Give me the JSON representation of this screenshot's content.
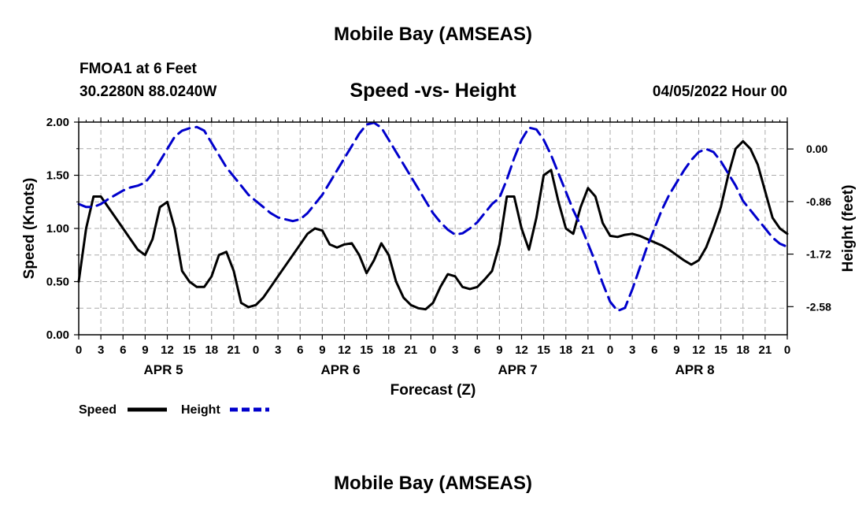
{
  "header": {
    "title": "Mobile Bay (AMSEAS)",
    "station": "FMOA1 at 6 Feet",
    "coords": "30.2280N  88.0240W",
    "subtitle": "Speed -vs- Height",
    "datetime": "04/05/2022 Hour 00",
    "bottom_title": "Mobile Bay (AMSEAS)"
  },
  "colors": {
    "speed": "#000000",
    "height": "#0000cc",
    "grid": "#aaaaaa"
  },
  "chart_data": {
    "type": "line",
    "xlabel": "Forecast (Z)",
    "x_ticks": [
      "0",
      "3",
      "6",
      "9",
      "12",
      "15",
      "18",
      "21",
      "0",
      "3",
      "6",
      "9",
      "12",
      "15",
      "18",
      "21",
      "0",
      "3",
      "6",
      "9",
      "12",
      "15",
      "18",
      "21",
      "0",
      "3",
      "6",
      "9",
      "12",
      "15",
      "18",
      "21",
      "0"
    ],
    "day_labels": [
      "APR 5",
      "APR 6",
      "APR 7",
      "APR 8"
    ],
    "x_range_hours": [
      0,
      96
    ],
    "y_left": {
      "label": "Speed (Knots)",
      "range": [
        0,
        2
      ],
      "ticks": [
        "0.00",
        "0.50",
        "1.00",
        "1.50",
        "2.00"
      ]
    },
    "y_right": {
      "label": "Height (feet)",
      "range": [
        -3.04,
        0.44
      ],
      "ticks": [
        "0.00",
        "-0.86",
        "-1.72",
        "-2.58"
      ]
    },
    "grid": true,
    "legend_position": "bottom-left",
    "series": [
      {
        "name": "Speed",
        "axis": "left",
        "style": "solid",
        "x": [
          0,
          1,
          2,
          3,
          4,
          5,
          6,
          7,
          8,
          9,
          10,
          11,
          12,
          13,
          14,
          15,
          16,
          17,
          18,
          19,
          20,
          21,
          22,
          23,
          24,
          25,
          26,
          27,
          28,
          29,
          30,
          31,
          32,
          33,
          34,
          35,
          36,
          37,
          38,
          39,
          40,
          41,
          42,
          43,
          44,
          45,
          46,
          47,
          48,
          49,
          50,
          51,
          52,
          53,
          54,
          55,
          56,
          57,
          58,
          59,
          60,
          61,
          62,
          63,
          64,
          65,
          66,
          67,
          68,
          69,
          70,
          71,
          72,
          73,
          74,
          75,
          76,
          77,
          78,
          79,
          80,
          81,
          82,
          83,
          84,
          85,
          86,
          87,
          88,
          89,
          90,
          91,
          92,
          93,
          94,
          95,
          96
        ],
        "values": [
          0.5,
          1.0,
          1.3,
          1.3,
          1.2,
          1.1,
          1.0,
          0.9,
          0.8,
          0.75,
          0.9,
          1.2,
          1.25,
          1.0,
          0.6,
          0.5,
          0.45,
          0.45,
          0.55,
          0.75,
          0.78,
          0.6,
          0.3,
          0.26,
          0.28,
          0.35,
          0.45,
          0.55,
          0.65,
          0.75,
          0.85,
          0.95,
          1.0,
          0.98,
          0.85,
          0.82,
          0.85,
          0.86,
          0.75,
          0.58,
          0.7,
          0.86,
          0.75,
          0.5,
          0.35,
          0.28,
          0.25,
          0.24,
          0.3,
          0.45,
          0.57,
          0.55,
          0.45,
          0.43,
          0.45,
          0.52,
          0.6,
          0.85,
          1.3,
          1.3,
          1.0,
          0.8,
          1.1,
          1.5,
          1.55,
          1.25,
          1.0,
          0.95,
          1.2,
          1.38,
          1.3,
          1.05,
          0.93,
          0.92,
          0.94,
          0.95,
          0.93,
          0.9,
          0.87,
          0.84,
          0.8,
          0.75,
          0.7,
          0.66,
          0.7,
          0.82,
          1.0,
          1.2,
          1.5,
          1.75,
          1.82,
          1.75,
          1.6,
          1.35,
          1.1,
          1.0,
          0.95
        ]
      },
      {
        "name": "Height",
        "axis": "right",
        "style": "dashed",
        "x": [
          0,
          1,
          2,
          3,
          4,
          5,
          6,
          7,
          8,
          9,
          10,
          11,
          12,
          13,
          14,
          15,
          16,
          17,
          18,
          19,
          20,
          21,
          22,
          23,
          24,
          25,
          26,
          27,
          28,
          29,
          30,
          31,
          32,
          33,
          34,
          35,
          36,
          37,
          38,
          39,
          40,
          41,
          42,
          43,
          44,
          45,
          46,
          47,
          48,
          49,
          50,
          51,
          52,
          53,
          54,
          55,
          56,
          57,
          58,
          59,
          60,
          61,
          62,
          63,
          64,
          65,
          66,
          67,
          68,
          69,
          70,
          71,
          72,
          73,
          74,
          75,
          76,
          77,
          78,
          79,
          80,
          81,
          82,
          83,
          84,
          85,
          86,
          87,
          88,
          89,
          90,
          91,
          92,
          93,
          94,
          95,
          96
        ],
        "values": [
          -0.9,
          -0.95,
          -0.95,
          -0.9,
          -0.82,
          -0.75,
          -0.68,
          -0.63,
          -0.6,
          -0.55,
          -0.4,
          -0.2,
          0.0,
          0.2,
          0.3,
          0.34,
          0.36,
          0.3,
          0.1,
          -0.1,
          -0.3,
          -0.45,
          -0.6,
          -0.75,
          -0.85,
          -0.95,
          -1.05,
          -1.12,
          -1.15,
          -1.18,
          -1.15,
          -1.05,
          -0.9,
          -0.75,
          -0.55,
          -0.35,
          -0.15,
          0.05,
          0.25,
          0.4,
          0.43,
          0.35,
          0.15,
          -0.05,
          -0.25,
          -0.45,
          -0.65,
          -0.85,
          -1.05,
          -1.2,
          -1.32,
          -1.4,
          -1.38,
          -1.3,
          -1.2,
          -1.05,
          -0.9,
          -0.8,
          -0.5,
          -0.15,
          0.15,
          0.35,
          0.32,
          0.15,
          -0.1,
          -0.4,
          -0.7,
          -1.0,
          -1.25,
          -1.55,
          -1.85,
          -2.2,
          -2.5,
          -2.65,
          -2.6,
          -2.3,
          -1.95,
          -1.6,
          -1.3,
          -1.0,
          -0.75,
          -0.55,
          -0.35,
          -0.18,
          -0.05,
          0.0,
          -0.05,
          -0.2,
          -0.4,
          -0.6,
          -0.85,
          -1.0,
          -1.15,
          -1.3,
          -1.45,
          -1.55,
          -1.6
        ]
      }
    ]
  }
}
